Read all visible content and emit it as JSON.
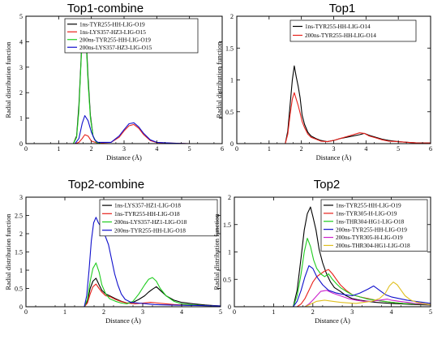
{
  "chart_data": [
    {
      "type": "line",
      "title": "Top1-combine",
      "xlabel": "Distance (Å)",
      "ylabel": "Radial distribution function",
      "xlim": [
        0,
        6
      ],
      "ylim": [
        0,
        5
      ],
      "xticks": [
        "0",
        "1",
        "2",
        "3",
        "4",
        "5",
        "6"
      ],
      "yticks": [
        "0",
        "1",
        "2",
        "3",
        "4",
        "5"
      ],
      "grid": false,
      "legend": "top-right",
      "series": [
        {
          "name": "1ns-TYR255-HH-LIG-O19",
          "color": "#000000",
          "x": [
            0,
            1.45,
            1.55,
            1.62,
            1.68,
            1.73,
            1.78,
            1.84,
            1.9,
            1.97,
            2.05,
            2.15,
            2.3,
            2.6,
            3.0,
            3.3,
            3.6,
            4.0,
            4.5,
            5.0,
            6.0
          ],
          "y": [
            0,
            0,
            0.3,
            1.5,
            3.2,
            4.6,
            4.9,
            4.2,
            2.6,
            1.1,
            0.3,
            0.06,
            0,
            0,
            0,
            0,
            0,
            0,
            0,
            0,
            0
          ]
        },
        {
          "name": "1ns-LYS357-HZ3-LIG-O15",
          "color": "#e8201a",
          "x": [
            0,
            1.5,
            1.62,
            1.72,
            1.8,
            1.9,
            2.0,
            2.2,
            2.6,
            2.85,
            3.0,
            3.15,
            3.3,
            3.45,
            3.6,
            3.8,
            4.0,
            4.5,
            5.0,
            6.0
          ],
          "y": [
            0,
            0,
            0.05,
            0.2,
            0.35,
            0.3,
            0.1,
            0.02,
            0.05,
            0.25,
            0.5,
            0.7,
            0.75,
            0.6,
            0.35,
            0.12,
            0.04,
            0.02,
            0,
            0
          ]
        },
        {
          "name": "200ns-TYR255-HH-LIG-O19",
          "color": "#1fcc1f",
          "x": [
            0,
            1.45,
            1.55,
            1.62,
            1.68,
            1.73,
            1.78,
            1.84,
            1.9,
            1.97,
            2.05,
            2.15,
            2.3,
            3.0,
            4.0,
            5.0,
            6.0
          ],
          "y": [
            0,
            0,
            0.25,
            1.3,
            3.1,
            4.3,
            4.6,
            4.0,
            2.4,
            1.0,
            0.3,
            0.05,
            0,
            0,
            0,
            0,
            0
          ]
        },
        {
          "name": "200ns-LYS357-HZ3-LIG-O15",
          "color": "#1010cc",
          "x": [
            0,
            1.5,
            1.62,
            1.72,
            1.8,
            1.9,
            2.0,
            2.1,
            2.2,
            2.6,
            2.85,
            3.0,
            3.15,
            3.3,
            3.45,
            3.6,
            3.8,
            4.0,
            4.5,
            5.0,
            6.0
          ],
          "y": [
            0,
            0,
            0.2,
            0.8,
            1.1,
            0.9,
            0.45,
            0.15,
            0.05,
            0.05,
            0.3,
            0.55,
            0.78,
            0.82,
            0.65,
            0.4,
            0.15,
            0.05,
            0.02,
            0,
            0
          ]
        }
      ]
    },
    {
      "type": "line",
      "title": "Top1",
      "xlabel": "Distance (Å)",
      "ylabel": "Radial distribution function",
      "xlim": [
        0,
        6
      ],
      "ylim": [
        0,
        2
      ],
      "xticks": [
        "0",
        "1",
        "2",
        "3",
        "4",
        "5",
        "6"
      ],
      "yticks": [
        "0",
        "0.5",
        "1",
        "1.5",
        "2"
      ],
      "grid": false,
      "legend": "top-right",
      "series": [
        {
          "name": "1ns-TYR255-HH-LIG-O14",
          "color": "#000000",
          "x": [
            0,
            1.5,
            1.58,
            1.65,
            1.72,
            1.78,
            1.84,
            1.9,
            1.96,
            2.02,
            2.1,
            2.2,
            2.3,
            2.45,
            2.6,
            2.8,
            3.0,
            3.2,
            3.4,
            3.6,
            3.8,
            3.95,
            4.1,
            4.3,
            4.5,
            4.7,
            5.0,
            5.3,
            5.6,
            6.0
          ],
          "y": [
            0,
            0,
            0.2,
            0.6,
            1.0,
            1.22,
            1.05,
            0.9,
            0.72,
            0.45,
            0.3,
            0.18,
            0.12,
            0.08,
            0.05,
            0.03,
            0.05,
            0.08,
            0.1,
            0.12,
            0.14,
            0.16,
            0.13,
            0.1,
            0.07,
            0.05,
            0.03,
            0.02,
            0.01,
            0.01
          ]
        },
        {
          "name": "200ns-TYR255-HH-LIG-O14",
          "color": "#e8201a",
          "x": [
            0,
            1.5,
            1.58,
            1.65,
            1.72,
            1.78,
            1.84,
            1.9,
            1.96,
            2.02,
            2.1,
            2.2,
            2.3,
            2.45,
            2.6,
            2.8,
            3.0,
            3.2,
            3.4,
            3.6,
            3.8,
            3.95,
            4.1,
            4.3,
            4.5,
            4.7,
            5.0,
            5.3,
            5.6,
            6.0
          ],
          "y": [
            0,
            0,
            0.15,
            0.45,
            0.7,
            0.8,
            0.7,
            0.6,
            0.48,
            0.35,
            0.25,
            0.15,
            0.1,
            0.07,
            0.04,
            0.03,
            0.05,
            0.08,
            0.11,
            0.14,
            0.17,
            0.16,
            0.12,
            0.09,
            0.06,
            0.04,
            0.03,
            0.02,
            0.01,
            0.01
          ]
        }
      ]
    },
    {
      "type": "line",
      "title": "Top2-combine",
      "xlabel": "Distance (Å)",
      "ylabel": "Radial distribution function",
      "xlim": [
        0,
        5
      ],
      "ylim": [
        0,
        3
      ],
      "xticks": [
        "0",
        "1",
        "2",
        "3",
        "4",
        "5"
      ],
      "yticks": [
        "0",
        "0.5",
        "1",
        "1.5",
        "2",
        "2.5",
        "3"
      ],
      "grid": false,
      "legend": "top-right",
      "series": [
        {
          "name": "1ns-LYS357-HZ1-LIG-O18",
          "color": "#000000",
          "x": [
            0,
            1.5,
            1.58,
            1.65,
            1.72,
            1.8,
            1.88,
            1.95,
            2.05,
            2.15,
            2.3,
            2.45,
            2.6,
            2.75,
            2.9,
            3.05,
            3.15,
            3.25,
            3.35,
            3.45,
            3.6,
            3.8,
            4.0,
            4.3,
            4.6,
            5.0
          ],
          "y": [
            0,
            0,
            0.15,
            0.5,
            0.7,
            0.78,
            0.6,
            0.45,
            0.35,
            0.3,
            0.22,
            0.15,
            0.1,
            0.12,
            0.2,
            0.3,
            0.4,
            0.48,
            0.55,
            0.45,
            0.3,
            0.18,
            0.12,
            0.08,
            0.05,
            0.02
          ]
        },
        {
          "name": "1ns-TYR255-HH-LIG-O18",
          "color": "#e8201a",
          "x": [
            0,
            1.5,
            1.58,
            1.65,
            1.72,
            1.8,
            1.88,
            1.95,
            2.05,
            2.15,
            2.3,
            2.45,
            2.6,
            2.8,
            3.0,
            3.2,
            3.4,
            3.6,
            3.8,
            4.0,
            4.3,
            4.6,
            5.0
          ],
          "y": [
            0,
            0,
            0.1,
            0.35,
            0.55,
            0.62,
            0.5,
            0.4,
            0.3,
            0.28,
            0.2,
            0.14,
            0.1,
            0.08,
            0.1,
            0.12,
            0.1,
            0.08,
            0.06,
            0.05,
            0.04,
            0.03,
            0.02
          ]
        },
        {
          "name": "200ns-LYS357-HZ1-LIG-O18",
          "color": "#1fcc1f",
          "x": [
            0,
            1.5,
            1.58,
            1.65,
            1.72,
            1.8,
            1.88,
            1.95,
            2.05,
            2.15,
            2.3,
            2.45,
            2.6,
            2.75,
            2.9,
            3.05,
            3.15,
            3.25,
            3.35,
            3.45,
            3.6,
            3.8,
            4.0,
            4.3,
            4.6,
            5.0
          ],
          "y": [
            0,
            0,
            0.2,
            0.7,
            1.05,
            1.2,
            0.95,
            0.6,
            0.35,
            0.22,
            0.15,
            0.1,
            0.08,
            0.15,
            0.35,
            0.6,
            0.75,
            0.8,
            0.7,
            0.5,
            0.3,
            0.15,
            0.08,
            0.05,
            0.03,
            0.02
          ]
        },
        {
          "name": "200ns-TYR255-HH-LIG-O18",
          "color": "#1010cc",
          "x": [
            0,
            1.5,
            1.56,
            1.62,
            1.68,
            1.74,
            1.8,
            1.86,
            1.92,
            1.98,
            2.05,
            2.12,
            2.2,
            2.28,
            2.36,
            2.45,
            2.55,
            2.7,
            2.9,
            3.1,
            3.3,
            3.6,
            4.0,
            4.5,
            5.0
          ],
          "y": [
            0,
            0,
            0.3,
            1.0,
            1.8,
            2.3,
            2.45,
            2.3,
            2.2,
            2.1,
            1.9,
            1.7,
            1.3,
            0.9,
            0.6,
            0.35,
            0.2,
            0.12,
            0.1,
            0.08,
            0.06,
            0.05,
            0.04,
            0.03,
            0.02
          ]
        }
      ]
    },
    {
      "type": "line",
      "title": "Top2",
      "xlabel": "Distance (Å)",
      "ylabel": "Radial distribution function",
      "xlim": [
        0,
        5
      ],
      "ylim": [
        0,
        2
      ],
      "xticks": [
        "0",
        "1",
        "2",
        "3",
        "4",
        "5"
      ],
      "yticks": [
        "0",
        "0.5",
        "1",
        "1.5",
        "2"
      ],
      "grid": false,
      "legend": "top-right",
      "series": [
        {
          "name": "1ns-TYR255-HH-LIG-O19",
          "color": "#000000",
          "x": [
            0,
            1.5,
            1.6,
            1.7,
            1.78,
            1.86,
            1.94,
            2.0,
            2.08,
            2.16,
            2.25,
            2.35,
            2.45,
            2.55,
            2.7,
            2.85,
            3.0,
            3.2,
            3.4,
            3.6,
            3.8,
            4.0,
            4.3,
            4.6,
            5.0
          ],
          "y": [
            0,
            0,
            0.3,
            0.9,
            1.4,
            1.7,
            1.82,
            1.65,
            1.4,
            1.05,
            0.8,
            0.6,
            0.45,
            0.35,
            0.28,
            0.2,
            0.15,
            0.12,
            0.1,
            0.08,
            0.07,
            0.06,
            0.05,
            0.04,
            0.03
          ]
        },
        {
          "name": "1ns-TYR305-H-LIG-O19",
          "color": "#e8201a",
          "x": [
            0,
            1.6,
            1.7,
            1.8,
            1.9,
            2.0,
            2.1,
            2.2,
            2.3,
            2.4,
            2.5,
            2.6,
            2.7,
            2.85,
            3.0,
            3.2,
            3.4,
            3.6,
            3.8,
            4.0,
            4.3,
            4.6,
            5.0
          ],
          "y": [
            0,
            0,
            0.05,
            0.15,
            0.3,
            0.45,
            0.55,
            0.6,
            0.65,
            0.68,
            0.6,
            0.5,
            0.4,
            0.3,
            0.22,
            0.18,
            0.15,
            0.12,
            0.1,
            0.08,
            0.06,
            0.05,
            0.04
          ]
        },
        {
          "name": "1ns-THR304-HG1-LIG-O18",
          "color": "#1fcc1f",
          "x": [
            0,
            1.5,
            1.6,
            1.7,
            1.78,
            1.86,
            1.94,
            2.02,
            2.1,
            2.2,
            2.3,
            2.4,
            2.5,
            2.6,
            2.7,
            2.85,
            3.0,
            3.2,
            3.4,
            3.6,
            3.8,
            4.0,
            4.3,
            4.6,
            5.0
          ],
          "y": [
            0,
            0,
            0.2,
            0.6,
            1.0,
            1.25,
            1.1,
            0.85,
            0.7,
            0.6,
            0.55,
            0.6,
            0.5,
            0.42,
            0.35,
            0.28,
            0.22,
            0.18,
            0.14,
            0.12,
            0.1,
            0.08,
            0.06,
            0.05,
            0.04
          ]
        },
        {
          "name": "200ns-TYR255-HH-LIG-O19",
          "color": "#1010cc",
          "x": [
            0,
            1.5,
            1.6,
            1.7,
            1.8,
            1.9,
            2.0,
            2.1,
            2.25,
            2.4,
            2.6,
            2.8,
            3.0,
            3.2,
            3.4,
            3.55,
            3.7,
            3.85,
            4.0,
            4.2,
            4.4,
            4.6,
            4.8,
            5.0
          ],
          "y": [
            0,
            0,
            0.1,
            0.3,
            0.55,
            0.75,
            0.7,
            0.55,
            0.4,
            0.3,
            0.25,
            0.22,
            0.2,
            0.25,
            0.32,
            0.38,
            0.3,
            0.22,
            0.18,
            0.15,
            0.12,
            0.1,
            0.08,
            0.06
          ]
        },
        {
          "name": "200ns-TYR305-H-LIG-O19",
          "color": "#cc22cc",
          "x": [
            0,
            1.8,
            1.9,
            2.0,
            2.1,
            2.2,
            2.35,
            2.5,
            2.7,
            2.9,
            3.1,
            3.3,
            3.5,
            3.7,
            3.9,
            4.0,
            4.2,
            4.4,
            4.6,
            4.8,
            5.0
          ],
          "y": [
            0,
            0,
            0.05,
            0.12,
            0.2,
            0.28,
            0.3,
            0.25,
            0.2,
            0.15,
            0.12,
            0.1,
            0.1,
            0.12,
            0.14,
            0.12,
            0.1,
            0.08,
            0.06,
            0.05,
            0.04
          ]
        },
        {
          "name": "200ns-THR304-HG1-LIG-O18",
          "color": "#e0c020",
          "x": [
            0,
            1.8,
            1.95,
            2.1,
            2.3,
            2.5,
            2.7,
            2.9,
            3.1,
            3.3,
            3.5,
            3.7,
            3.85,
            3.95,
            4.05,
            4.15,
            4.25,
            4.35,
            4.5,
            4.65,
            4.8,
            5.0
          ],
          "y": [
            0,
            0,
            0.05,
            0.1,
            0.12,
            0.1,
            0.08,
            0.07,
            0.06,
            0.08,
            0.1,
            0.15,
            0.25,
            0.38,
            0.45,
            0.4,
            0.3,
            0.2,
            0.12,
            0.08,
            0.06,
            0.04
          ]
        }
      ]
    }
  ]
}
